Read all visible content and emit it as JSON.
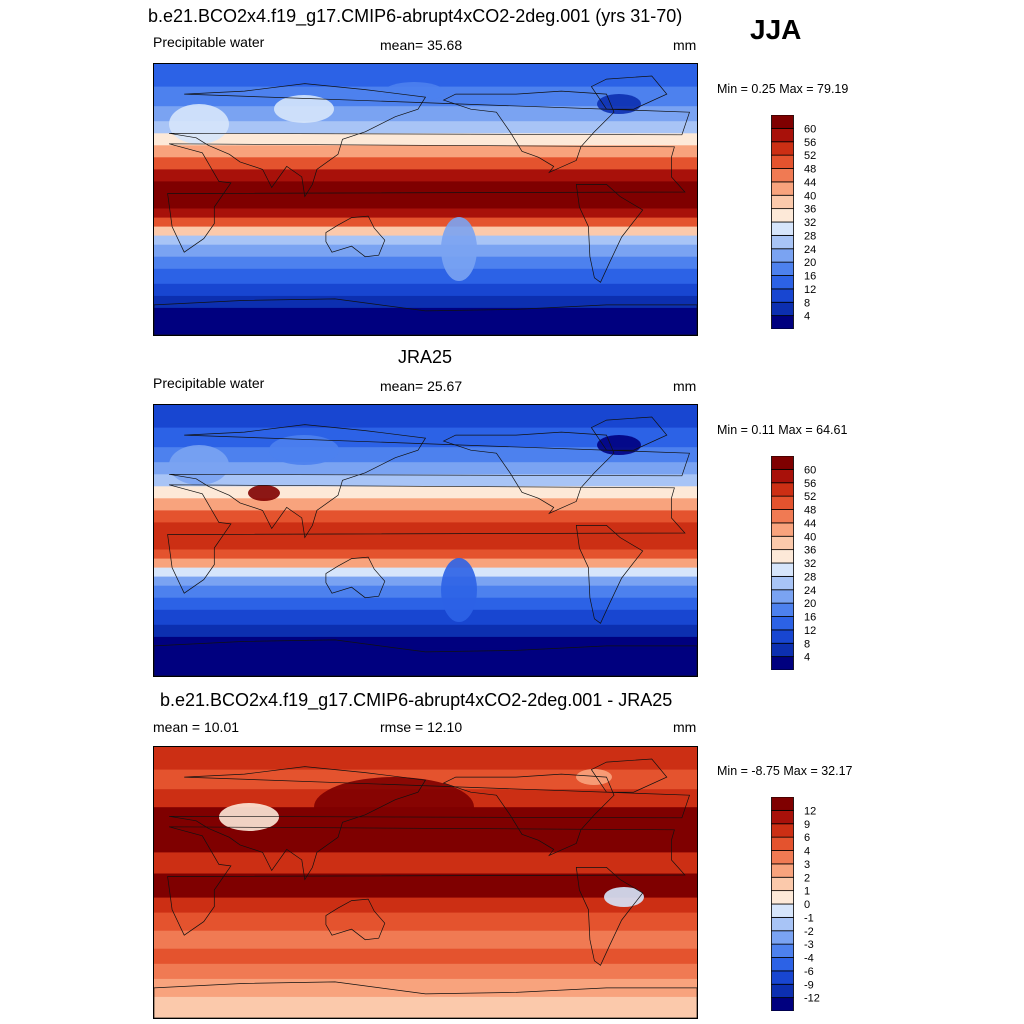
{
  "season": "JJA",
  "panels": [
    {
      "id": "model",
      "title": "b.e21.BCO2x4.f19_g17.CMIP6-abrupt4xCO2-2deg.001 (yrs 31-70)",
      "left_label": "Precipitable water",
      "center_label": "mean=  35.68",
      "units": "mm",
      "minmax": "Min =   0.25 Max =  79.19"
    },
    {
      "id": "obs",
      "title": "JRA25",
      "left_label": "Precipitable water",
      "center_label": "mean=  25.67",
      "units": "mm",
      "minmax": "Min =   0.11 Max =  64.61"
    },
    {
      "id": "diff",
      "title": "b.e21.BCO2x4.f19_g17.CMIP6-abrupt4xCO2-2deg.001 - JRA25",
      "left_label": "mean =  10.01",
      "center_label": "rmse =  12.10",
      "units": "mm",
      "minmax": "Min =  -8.75 Max =  32.17"
    }
  ],
  "chart_data": [
    {
      "type": "heatmap",
      "title": "b.e21.BCO2x4.f19_g17.CMIP6-abrupt4xCO2-2deg.001 (yrs 31-70)",
      "variable": "Precipitable water",
      "units": "mm",
      "mean": 35.68,
      "min": 0.25,
      "max": 79.19,
      "colorbar_levels": [
        4,
        8,
        12,
        16,
        20,
        24,
        28,
        32,
        36,
        40,
        44,
        48,
        52,
        56,
        60
      ],
      "colors": [
        "#00007f",
        "#0c2fb0",
        "#1846d1",
        "#2c62e6",
        "#4d81ee",
        "#7aa3f2",
        "#a8c4f6",
        "#d6e5fb",
        "#fde9d8",
        "#fbc9ab",
        "#f8a37d",
        "#f07a53",
        "#e4532e",
        "#cc2f14",
        "#a8110a",
        "#7f0000"
      ]
    },
    {
      "type": "heatmap",
      "title": "JRA25",
      "variable": "Precipitable water",
      "units": "mm",
      "mean": 25.67,
      "min": 0.11,
      "max": 64.61,
      "colorbar_levels": [
        4,
        8,
        12,
        16,
        20,
        24,
        28,
        32,
        36,
        40,
        44,
        48,
        52,
        56,
        60
      ],
      "colors": [
        "#00007f",
        "#0c2fb0",
        "#1846d1",
        "#2c62e6",
        "#4d81ee",
        "#7aa3f2",
        "#a8c4f6",
        "#d6e5fb",
        "#fde9d8",
        "#fbc9ab",
        "#f8a37d",
        "#f07a53",
        "#e4532e",
        "#cc2f14",
        "#a8110a",
        "#7f0000"
      ]
    },
    {
      "type": "heatmap",
      "title": "b.e21.BCO2x4.f19_g17.CMIP6-abrupt4xCO2-2deg.001 - JRA25",
      "units": "mm",
      "mean": 10.01,
      "rmse": 12.1,
      "min": -8.75,
      "max": 32.17,
      "colorbar_levels": [
        -12,
        -9,
        -6,
        -4,
        -3,
        -2,
        -1,
        0,
        1,
        2,
        3,
        4,
        6,
        9,
        12
      ],
      "colors": [
        "#00007f",
        "#0c2fb0",
        "#1846d1",
        "#2c62e6",
        "#4d81ee",
        "#7aa3f2",
        "#a8c4f6",
        "#d6e5fb",
        "#fde9d8",
        "#fbc9ab",
        "#f8a37d",
        "#f07a53",
        "#e4532e",
        "#cc2f14",
        "#a8110a",
        "#7f0000"
      ]
    }
  ]
}
